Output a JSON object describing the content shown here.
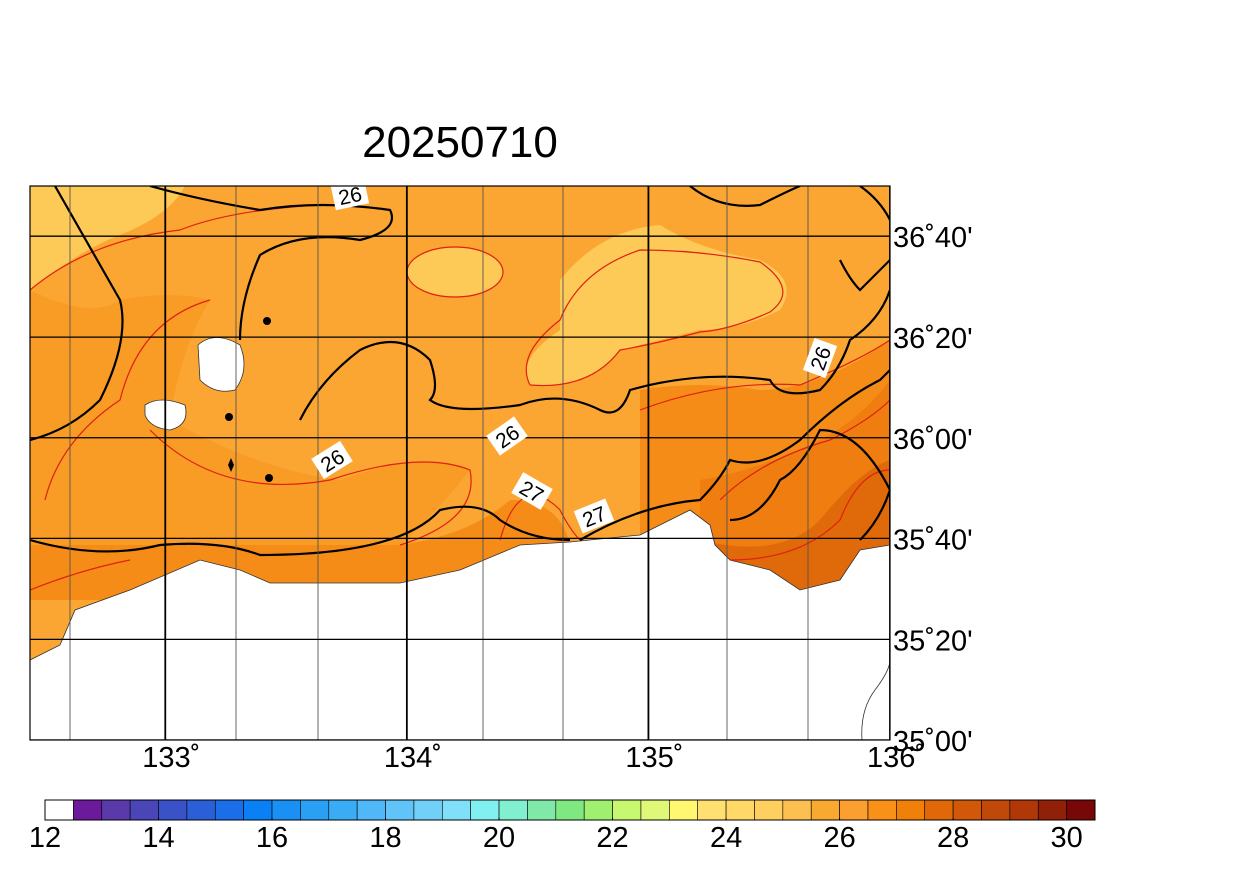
{
  "title": "20250710",
  "map": {
    "lonlim": [
      132.44,
      136
    ],
    "latlim": [
      35,
      36.833
    ],
    "lon_ticks": [
      {
        "value": 133,
        "label": "133˚"
      },
      {
        "value": 134,
        "label": "134˚"
      },
      {
        "value": 135,
        "label": "135˚"
      },
      {
        "value": 136,
        "label": "136˚"
      }
    ],
    "lat_ticks": [
      {
        "value": 35,
        "label": "35˚00'"
      },
      {
        "value": 35.333,
        "label": "35˚20'"
      },
      {
        "value": 35.667,
        "label": "35˚40'"
      },
      {
        "value": 36,
        "label": "36˚00'"
      },
      {
        "value": 36.333,
        "label": "36˚20'"
      },
      {
        "value": 36.667,
        "label": "36˚40'"
      }
    ],
    "contour_labels": [
      26,
      26,
      26,
      26,
      27,
      27
    ]
  },
  "colorbar": {
    "range": [
      12,
      30.5
    ],
    "ticks": [
      12,
      14,
      16,
      18,
      20,
      22,
      24,
      26,
      28,
      30
    ],
    "colors": [
      "#ffffff",
      "#6a1a9a",
      "#5a3aaa",
      "#4a46b8",
      "#3a52c8",
      "#2a5fd8",
      "#1a6ee8",
      "#0a80f5",
      "#1a90f5",
      "#2aa0f5",
      "#3aacf5",
      "#50b8f8",
      "#60c4f8",
      "#70d0f8",
      "#80e0fa",
      "#80f0f0",
      "#80f0d0",
      "#80e8a8",
      "#80e880",
      "#a0f070",
      "#c8f870",
      "#e0f878",
      "#fff870",
      "#ffe070",
      "#ffd868",
      "#ffd060",
      "#fcc050",
      "#f9a830",
      "#fba030",
      "#f99018",
      "#f08008",
      "#e06808",
      "#d05808",
      "#c04808",
      "#b03808",
      "#902008",
      "#780808"
    ]
  }
}
